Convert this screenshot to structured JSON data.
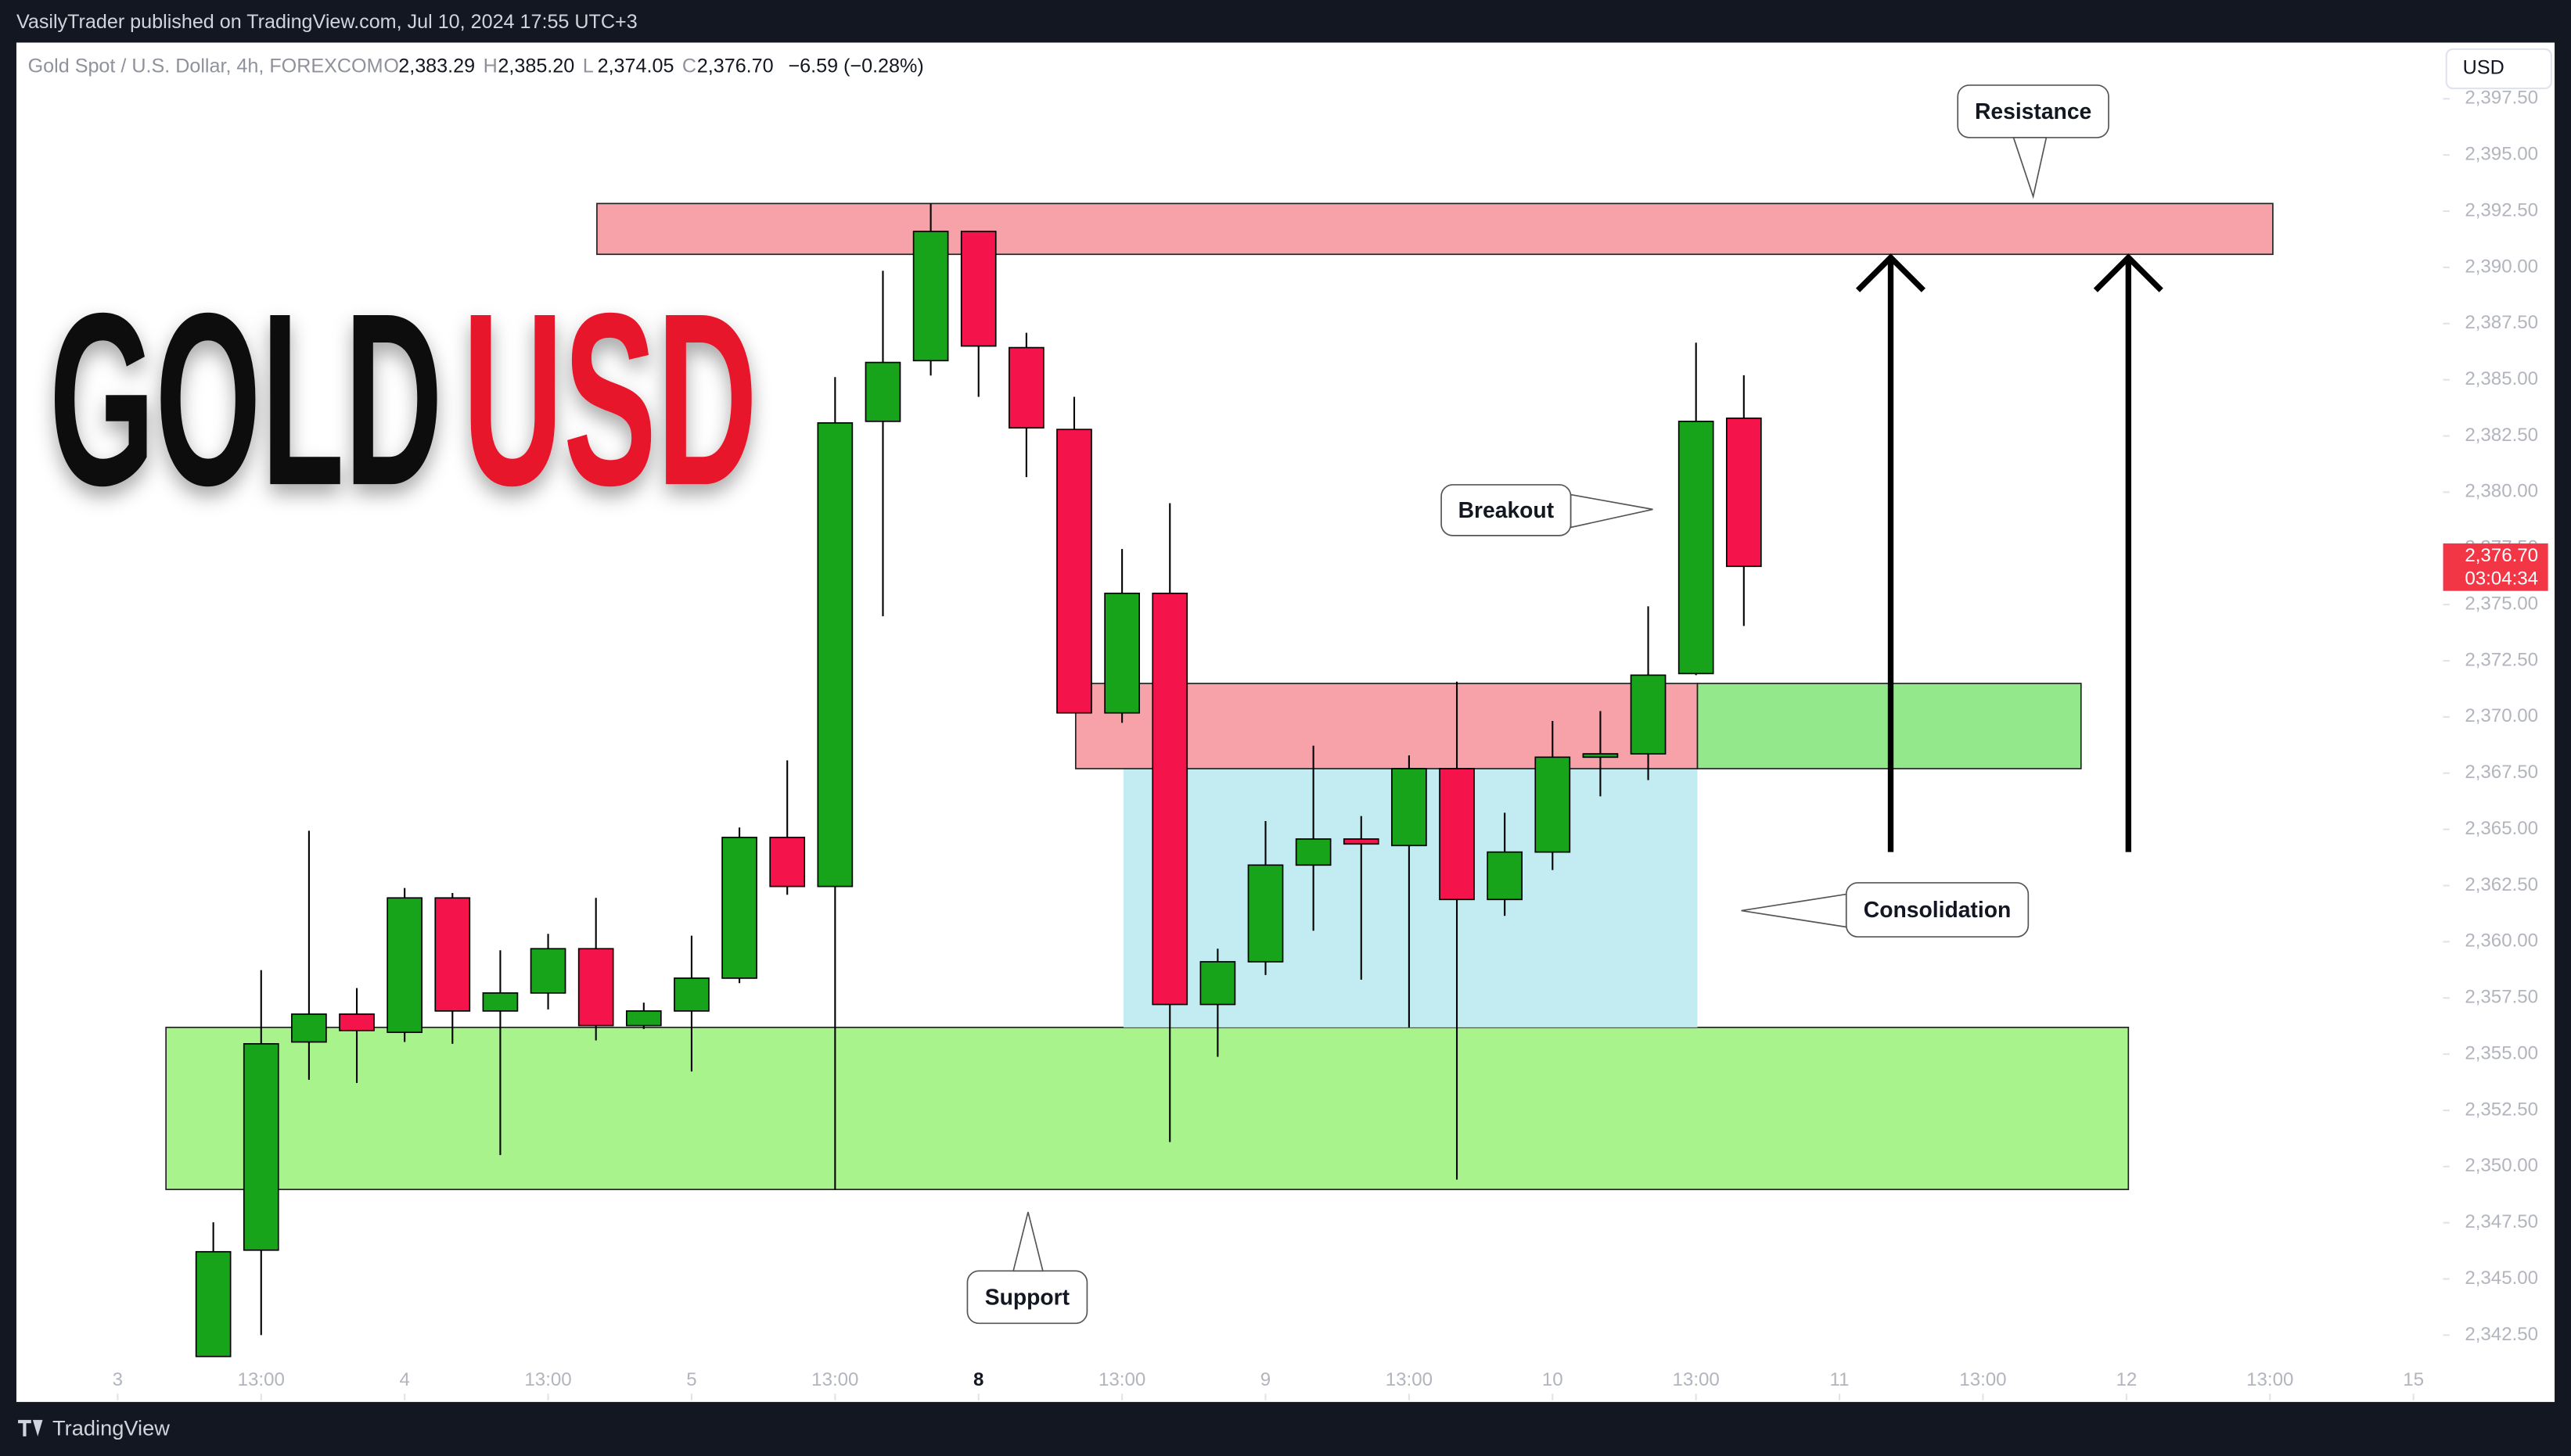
{
  "header": {
    "publisher": "VasilyTrader published on TradingView.com, Jul 10, 2024 17:55 UTC+3",
    "currency_button": "USD",
    "footer_brand": "TradingView"
  },
  "chart_data": {
    "type": "candlestick",
    "title": "GOLD",
    "title_accent": "USD",
    "title_color": "#111111",
    "title_accent_color": "#e8192c",
    "symbol": "Gold Spot / U.S. Dollar, 4h, FOREXCOM",
    "ohlc_legend": [
      {
        "key": "O",
        "value": "2,383.29"
      },
      {
        "key": "H",
        "value": "2,385.20"
      },
      {
        "key": "L",
        "value": "2,374.05"
      },
      {
        "key": "C",
        "value": "2,376.70"
      }
    ],
    "change": "−6.59 (−0.28%)",
    "up_color": "#17a41b",
    "down_color": "#f5134c",
    "x": [
      0,
      1,
      2,
      3,
      4,
      5,
      6,
      7,
      8,
      9,
      10,
      11,
      12,
      13,
      14,
      15,
      16,
      17,
      18,
      19,
      20,
      21,
      22,
      23,
      24,
      25,
      26,
      27,
      28,
      29,
      30,
      31,
      32
    ],
    "open": [
      2341.55,
      2346.28,
      2355.54,
      2356.78,
      2355.97,
      2361.95,
      2356.92,
      2357.72,
      2359.69,
      2356.27,
      2356.92,
      2358.38,
      2364.64,
      2362.46,
      2383.15,
      2385.85,
      2391.6,
      2386.43,
      2382.79,
      2370.18,
      2375.5,
      2357.21,
      2359.11,
      2363.41,
      2364.57,
      2364.28,
      2367.7,
      2361.88,
      2363.99,
      2368.21,
      2368.36,
      2371.93,
      2383.29
    ],
    "high": [
      2347.52,
      2358.74,
      2364.94,
      2357.94,
      2362.39,
      2362.17,
      2359.62,
      2360.35,
      2361.95,
      2357.29,
      2360.27,
      2365.08,
      2368.07,
      2385.12,
      2389.85,
      2392.84,
      2391.6,
      2387.09,
      2384.24,
      2377.47,
      2379.51,
      2359.69,
      2365.37,
      2368.72,
      2365.59,
      2368.29,
      2371.57,
      2365.74,
      2369.82,
      2370.26,
      2374.92,
      2386.65,
      2385.2
    ],
    "low": [
      2341.55,
      2342.5,
      2353.86,
      2353.72,
      2355.54,
      2355.46,
      2350.51,
      2356.99,
      2355.61,
      2356.12,
      2354.23,
      2358.16,
      2362.09,
      2348.98,
      2374.48,
      2385.19,
      2384.24,
      2380.67,
      2370.18,
      2369.74,
      2351.09,
      2354.88,
      2358.52,
      2360.49,
      2358.31,
      2356.19,
      2349.42,
      2361.15,
      2363.19,
      2366.47,
      2367.19,
      2371.86,
      2374.05
    ],
    "close": [
      2346.21,
      2355.46,
      2356.78,
      2356.05,
      2361.95,
      2356.92,
      2357.72,
      2359.69,
      2356.27,
      2356.92,
      2358.38,
      2364.64,
      2362.46,
      2383.08,
      2385.77,
      2391.6,
      2386.5,
      2382.86,
      2370.18,
      2375.5,
      2357.21,
      2359.11,
      2363.41,
      2364.57,
      2364.35,
      2367.7,
      2361.88,
      2363.99,
      2368.21,
      2368.36,
      2371.86,
      2383.15,
      2376.7
    ],
    "xlim": [
      -4.46,
      46.62
    ],
    "xticks": [
      {
        "value": -2,
        "label": "3"
      },
      {
        "value": 1,
        "label": "13:00"
      },
      {
        "value": 4,
        "label": "4"
      },
      {
        "value": 7,
        "label": "13:00"
      },
      {
        "value": 10,
        "label": "5"
      },
      {
        "value": 13,
        "label": "13:00"
      },
      {
        "value": 16,
        "label": "8"
      },
      {
        "value": 19,
        "label": "13:00"
      },
      {
        "value": 22,
        "label": "9"
      },
      {
        "value": 25,
        "label": "13:00"
      },
      {
        "value": 28,
        "label": "10"
      },
      {
        "value": 31,
        "label": "13:00"
      },
      {
        "value": 34,
        "label": "11"
      },
      {
        "value": 37,
        "label": "13:00"
      },
      {
        "value": 40,
        "label": "12"
      },
      {
        "value": 43,
        "label": "13:00"
      },
      {
        "value": 46,
        "label": "15"
      }
    ],
    "ylim": [
      2339.6,
      2400.0
    ],
    "yticks": [
      {
        "value": 2342.5,
        "label": "2,342.50"
      },
      {
        "value": 2345,
        "label": "2,345.00"
      },
      {
        "value": 2347.5,
        "label": "2,347.50"
      },
      {
        "value": 2350,
        "label": "2,350.00"
      },
      {
        "value": 2352.5,
        "label": "2,352.50"
      },
      {
        "value": 2355,
        "label": "2,355.00"
      },
      {
        "value": 2357.5,
        "label": "2,357.50"
      },
      {
        "value": 2360,
        "label": "2,360.00"
      },
      {
        "value": 2362.5,
        "label": "2,362.50"
      },
      {
        "value": 2365,
        "label": "2,365.00"
      },
      {
        "value": 2367.5,
        "label": "2,367.50"
      },
      {
        "value": 2370,
        "label": "2,370.00"
      },
      {
        "value": 2372.5,
        "label": "2,372.50"
      },
      {
        "value": 2375,
        "label": "2,375.00"
      },
      {
        "value": 2377.5,
        "label": "2,377.50"
      },
      {
        "value": 2380,
        "label": "2,380.00"
      },
      {
        "value": 2382.5,
        "label": "2,382.50"
      },
      {
        "value": 2385,
        "label": "2,385.00"
      },
      {
        "value": 2387.5,
        "label": "2,387.50"
      },
      {
        "value": 2390,
        "label": "2,390.00"
      },
      {
        "value": 2392.5,
        "label": "2,392.50"
      },
      {
        "value": 2395,
        "label": "2,395.00"
      },
      {
        "value": 2397.5,
        "label": "2,397.50"
      }
    ],
    "last_price": {
      "value": 2376.7,
      "label": "2,376.70",
      "countdown": "03:04:34",
      "color": "#f23645"
    },
    "zones": [
      {
        "x": [
          -0.99,
          40.04
        ],
        "y": [
          2348.98,
          2356.19
        ],
        "color": "#a8f38b"
      },
      {
        "x": [
          19.03,
          31.03
        ],
        "y": [
          2356.19,
          2367.7
        ],
        "color": "#c3ebf2"
      },
      {
        "x": [
          18.03,
          31.03
        ],
        "y": [
          2367.7,
          2371.49
        ],
        "color": "#f7a2a8"
      },
      {
        "x": [
          31.03,
          39.05
        ],
        "y": [
          2367.7,
          2371.49
        ],
        "color": "#93e88c"
      },
      {
        "x": [
          8.02,
          43.06
        ],
        "y": [
          2390.58,
          2392.84
        ],
        "color": "#f7a2a8"
      }
    ],
    "arrows": [
      {
        "x": 35.07,
        "y": [
          2363.99,
          2390.44
        ]
      },
      {
        "x": 40.04,
        "y": [
          2363.99,
          2390.44
        ]
      }
    ],
    "annotations": [
      "Resistance",
      "Breakout",
      "Consolidation",
      "Support"
    ]
  }
}
